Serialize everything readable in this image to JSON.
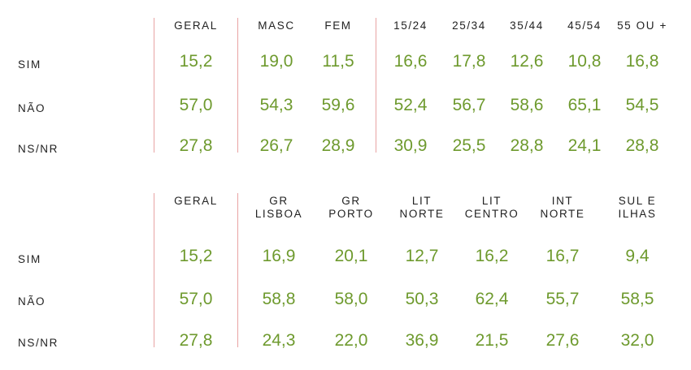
{
  "accent_color": "#6e9a2e",
  "divider_color": "#e8a3a3",
  "chart_data": [
    {
      "type": "table",
      "columns": [
        "GERAL",
        "MASC",
        "FEM",
        "15/24",
        "25/34",
        "35/44",
        "45/54",
        "55 OU +"
      ],
      "rows": [
        {
          "label": "SIM",
          "values": [
            "15,2",
            "19,0",
            "11,5",
            "16,6",
            "17,8",
            "12,6",
            "10,8",
            "16,8"
          ]
        },
        {
          "label": "NÃO",
          "values": [
            "57,0",
            "54,3",
            "59,6",
            "52,4",
            "56,7",
            "58,6",
            "65,1",
            "54,5"
          ]
        },
        {
          "label": "NS/NR",
          "values": [
            "27,8",
            "26,7",
            "28,9",
            "30,9",
            "25,5",
            "28,8",
            "24,1",
            "28,8"
          ]
        }
      ]
    },
    {
      "type": "table",
      "columns": [
        [
          "GERAL"
        ],
        [
          "GR",
          "LISBOA"
        ],
        [
          "GR",
          "PORTO"
        ],
        [
          "LIT",
          "NORTE"
        ],
        [
          "LIT",
          "CENTRO"
        ],
        [
          "INT",
          "NORTE"
        ],
        [
          "SUL E",
          "ILHAS"
        ]
      ],
      "rows": [
        {
          "label": "SIM",
          "values": [
            "15,2",
            "16,9",
            "20,1",
            "12,7",
            "16,2",
            "16,7",
            "9,4"
          ]
        },
        {
          "label": "NÃO",
          "values": [
            "57,0",
            "58,8",
            "58,0",
            "50,3",
            "62,4",
            "55,7",
            "58,5"
          ]
        },
        {
          "label": "NS/NR",
          "values": [
            "27,8",
            "24,3",
            "22,0",
            "36,9",
            "21,5",
            "27,6",
            "32,0"
          ]
        }
      ]
    }
  ]
}
